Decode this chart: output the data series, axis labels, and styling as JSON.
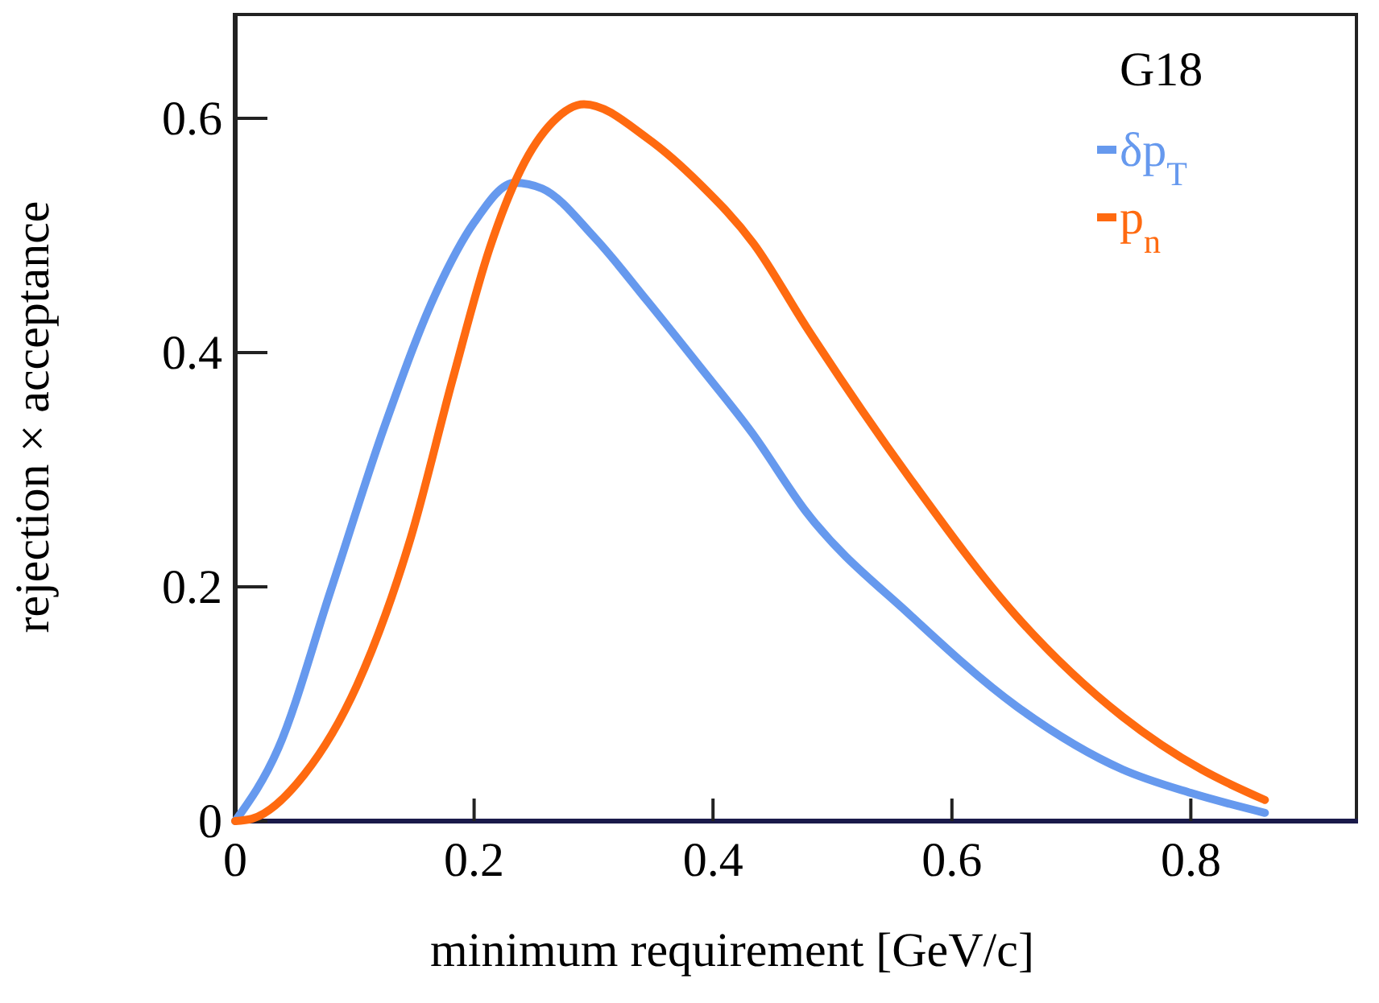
{
  "chart_data": {
    "type": "line",
    "xlabel": "minimum requirement [GeV/c]",
    "ylabel": "rejection × acceptance",
    "legend_title": "G18",
    "legend": "top right",
    "grid": false,
    "marker": "none",
    "line_style": "solid",
    "xlim": [
      0,
      0.94
    ],
    "ylim": [
      0,
      0.69
    ],
    "xticks": [
      0,
      0.2,
      0.4,
      0.6,
      0.8
    ],
    "yticks": [
      0,
      0.2,
      0.4,
      0.6
    ],
    "series": [
      {
        "name": "δp$_{T}$",
        "color": "#6699ee",
        "x": [
          0,
          0.036,
          0.08,
          0.125,
          0.169,
          0.2,
          0.234,
          0.257,
          0.301,
          0.345,
          0.389,
          0.433,
          0.478,
          0.566,
          0.654,
          0.743,
          0.8,
          0.862
        ],
        "values": [
          0,
          0.062,
          0.197,
          0.337,
          0.453,
          0.511,
          0.545,
          0.54,
          0.498,
          0.444,
          0.388,
          0.331,
          0.264,
          0.175,
          0.098,
          0.044,
          0.024,
          0.007
        ]
      },
      {
        "name": "p$_{n}$",
        "color": "#ff6a10",
        "x": [
          0,
          0.014,
          0.058,
          0.102,
          0.147,
          0.182,
          0.213,
          0.239,
          0.266,
          0.292,
          0.345,
          0.389,
          0.434,
          0.478,
          0.566,
          0.654,
          0.743,
          0.809,
          0.862
        ],
        "values": [
          0,
          0.002,
          0.04,
          0.116,
          0.242,
          0.377,
          0.489,
          0.556,
          0.597,
          0.612,
          0.583,
          0.544,
          0.493,
          0.422,
          0.291,
          0.175,
          0.089,
          0.044,
          0.018
        ]
      }
    ]
  }
}
